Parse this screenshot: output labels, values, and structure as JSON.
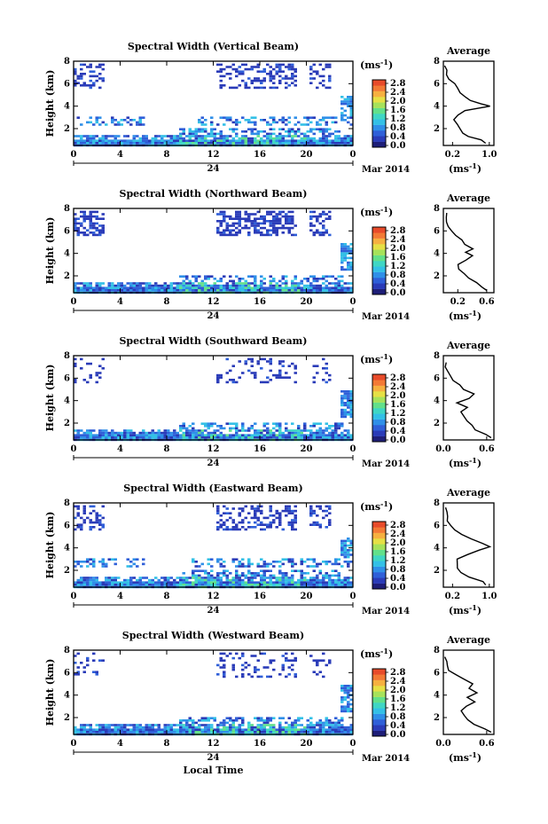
{
  "xlabel": "Local Time",
  "date_label": "Mar 2014",
  "day_label": "24",
  "colorbar_unit": "(ms",
  "colorbar_unit_exp": "-1",
  "colorbar_unit_close": ")",
  "colormap": [
    "#1e1e78",
    "#2a3bb8",
    "#2f5fd8",
    "#2f8fe8",
    "#33c0e6",
    "#3fd6c4",
    "#62e08a",
    "#a6e25a",
    "#e6e045",
    "#f6b040",
    "#f37a35",
    "#e84b2a"
  ],
  "chart_data": [
    {
      "type": "heatmap",
      "title": "Spectral Width (Vertical Beam)",
      "xlabel": "",
      "ylabel": "Height (km)",
      "xlim": [
        0,
        24
      ],
      "ylim": [
        0.5,
        8
      ],
      "xticks": [
        "0",
        "4",
        "8",
        "12",
        "16",
        "20",
        "0"
      ],
      "yticks": [
        "2",
        "4",
        "6",
        "8"
      ],
      "colorbar_ticks": [
        "0.0",
        "0.4",
        "0.8",
        "1.2",
        "1.6",
        "2.0",
        "2.4",
        "2.8"
      ],
      "avg_profile": {
        "title": "Average",
        "xlabel": "(ms",
        "xlabel_exp": "-1",
        "xlabel_close": ")",
        "xticks": [
          "0.2",
          "1.0"
        ],
        "xlim": [
          0,
          1.1
        ],
        "yticks": [
          "2",
          "4",
          "6",
          "8"
        ],
        "ylim": [
          0.5,
          8
        ],
        "height": [
          0.7,
          1.0,
          1.3,
          1.6,
          2.0,
          2.4,
          2.8,
          3.2,
          3.6,
          4.0,
          4.2,
          4.5,
          4.8,
          5.2,
          5.6,
          6.0,
          6.4,
          6.8,
          7.2,
          7.6
        ],
        "value": [
          0.95,
          0.85,
          0.55,
          0.42,
          0.35,
          0.3,
          0.25,
          0.3,
          0.5,
          1.0,
          0.8,
          0.6,
          0.5,
          0.38,
          0.3,
          0.22,
          0.12,
          0.08,
          0.06,
          0.05
        ]
      }
    },
    {
      "type": "heatmap",
      "title": "Spectral Width (Northward Beam)",
      "xlabel": "",
      "ylabel": "Height (km)",
      "xlim": [
        0,
        24
      ],
      "ylim": [
        0.5,
        8
      ],
      "xticks": [
        "0",
        "4",
        "8",
        "12",
        "16",
        "20",
        "0"
      ],
      "yticks": [
        "2",
        "4",
        "6",
        "8"
      ],
      "colorbar_ticks": [
        "0.0",
        "0.4",
        "0.8",
        "1.2",
        "1.6",
        "2.0",
        "2.4",
        "2.8"
      ],
      "avg_profile": {
        "title": "Average",
        "xlabel": "(ms",
        "xlabel_exp": "-1",
        "xlabel_close": ")",
        "xticks": [
          "0.2",
          "0.6"
        ],
        "xlim": [
          0,
          0.7
        ],
        "yticks": [
          "2",
          "4",
          "6",
          "8"
        ],
        "ylim": [
          0.5,
          8
        ],
        "height": [
          0.7,
          1.0,
          1.4,
          1.8,
          2.2,
          2.6,
          3.0,
          3.4,
          3.8,
          4.1,
          4.4,
          4.8,
          5.2,
          5.6,
          6.0,
          6.4,
          6.8,
          7.2,
          7.6
        ],
        "value": [
          0.62,
          0.55,
          0.45,
          0.34,
          0.3,
          0.22,
          0.2,
          0.3,
          0.42,
          0.3,
          0.4,
          0.3,
          0.24,
          0.18,
          0.12,
          0.07,
          0.05,
          0.04,
          0.04
        ]
      }
    },
    {
      "type": "heatmap",
      "title": "Spectral Width (Southward Beam)",
      "xlabel": "",
      "ylabel": "Height (km)",
      "xlim": [
        0,
        24
      ],
      "ylim": [
        0.5,
        8
      ],
      "xticks": [
        "0",
        "4",
        "8",
        "12",
        "16",
        "20",
        "0"
      ],
      "yticks": [
        "2",
        "4",
        "6",
        "8"
      ],
      "colorbar_ticks": [
        "0.0",
        "0.4",
        "0.8",
        "1.2",
        "1.6",
        "2.0",
        "2.4",
        "2.8"
      ],
      "avg_profile": {
        "title": "Average",
        "xlabel": "(ms",
        "xlabel_exp": "-1",
        "xlabel_close": ")",
        "xticks": [
          "0.0",
          "0.6"
        ],
        "xlim": [
          0,
          0.7
        ],
        "yticks": [
          "2",
          "4",
          "6",
          "8"
        ],
        "ylim": [
          0.5,
          8
        ],
        "height": [
          0.7,
          1.0,
          1.4,
          1.8,
          2.2,
          2.6,
          3.0,
          3.4,
          3.8,
          4.2,
          4.6,
          5.0,
          5.4,
          5.8,
          6.2,
          6.6,
          7.0,
          7.4
        ],
        "value": [
          0.68,
          0.6,
          0.45,
          0.38,
          0.32,
          0.3,
          0.26,
          0.32,
          0.2,
          0.35,
          0.42,
          0.28,
          0.22,
          0.14,
          0.08,
          0.05,
          0.04,
          0.03
        ]
      }
    },
    {
      "type": "heatmap",
      "title": "Spectral Width (Eastward Beam)",
      "xlabel": "",
      "ylabel": "Height (km)",
      "xlim": [
        0,
        24
      ],
      "ylim": [
        0.5,
        8
      ],
      "xticks": [
        "0",
        "4",
        "8",
        "12",
        "16",
        "20",
        "0"
      ],
      "yticks": [
        "2",
        "4",
        "6",
        "8"
      ],
      "colorbar_ticks": [
        "0.0",
        "0.4",
        "0.8",
        "1.2",
        "1.6",
        "2.0",
        "2.4",
        "2.8"
      ],
      "avg_profile": {
        "title": "Average",
        "xlabel": "(ms",
        "xlabel_exp": "-1",
        "xlabel_close": ")",
        "xticks": [
          "0.2",
          "1.0"
        ],
        "xlim": [
          0,
          1.1
        ],
        "yticks": [
          "2",
          "4",
          "6",
          "8"
        ],
        "ylim": [
          0.5,
          8
        ],
        "height": [
          0.7,
          1.0,
          1.4,
          1.8,
          2.2,
          2.6,
          3.0,
          3.4,
          3.8,
          4.1,
          4.4,
          4.8,
          5.2,
          5.6,
          6.0,
          6.4,
          6.8,
          7.2,
          7.6
        ],
        "value": [
          0.95,
          0.88,
          0.55,
          0.4,
          0.32,
          0.28,
          0.3,
          0.5,
          0.8,
          1.0,
          0.85,
          0.6,
          0.4,
          0.25,
          0.15,
          0.1,
          0.07,
          0.05,
          0.05
        ]
      }
    },
    {
      "type": "heatmap",
      "title": "Spectral Width (Westward Beam)",
      "xlabel": "Local Time",
      "ylabel": "Height (km)",
      "xlim": [
        0,
        24
      ],
      "ylim": [
        0.5,
        8
      ],
      "xticks": [
        "0",
        "4",
        "8",
        "12",
        "16",
        "20",
        "0"
      ],
      "yticks": [
        "2",
        "4",
        "6",
        "8"
      ],
      "colorbar_ticks": [
        "0.0",
        "0.4",
        "0.8",
        "1.2",
        "1.6",
        "2.0",
        "2.4",
        "2.8"
      ],
      "avg_profile": {
        "title": "Average",
        "xlabel": "(ms",
        "xlabel_exp": "-1",
        "xlabel_close": ")",
        "xticks": [
          "0.0",
          "0.6"
        ],
        "xlim": [
          0,
          0.7
        ],
        "yticks": [
          "2",
          "4",
          "6",
          "8"
        ],
        "ylim": [
          0.5,
          8
        ],
        "height": [
          0.7,
          1.0,
          1.4,
          1.8,
          2.2,
          2.6,
          3.0,
          3.4,
          3.8,
          4.2,
          4.6,
          5.0,
          5.4,
          5.8,
          6.2,
          6.6,
          7.0,
          7.4
        ],
        "value": [
          0.68,
          0.58,
          0.44,
          0.34,
          0.28,
          0.24,
          0.3,
          0.42,
          0.34,
          0.46,
          0.36,
          0.4,
          0.3,
          0.18,
          0.08,
          0.05,
          0.04,
          0.03
        ]
      }
    }
  ]
}
